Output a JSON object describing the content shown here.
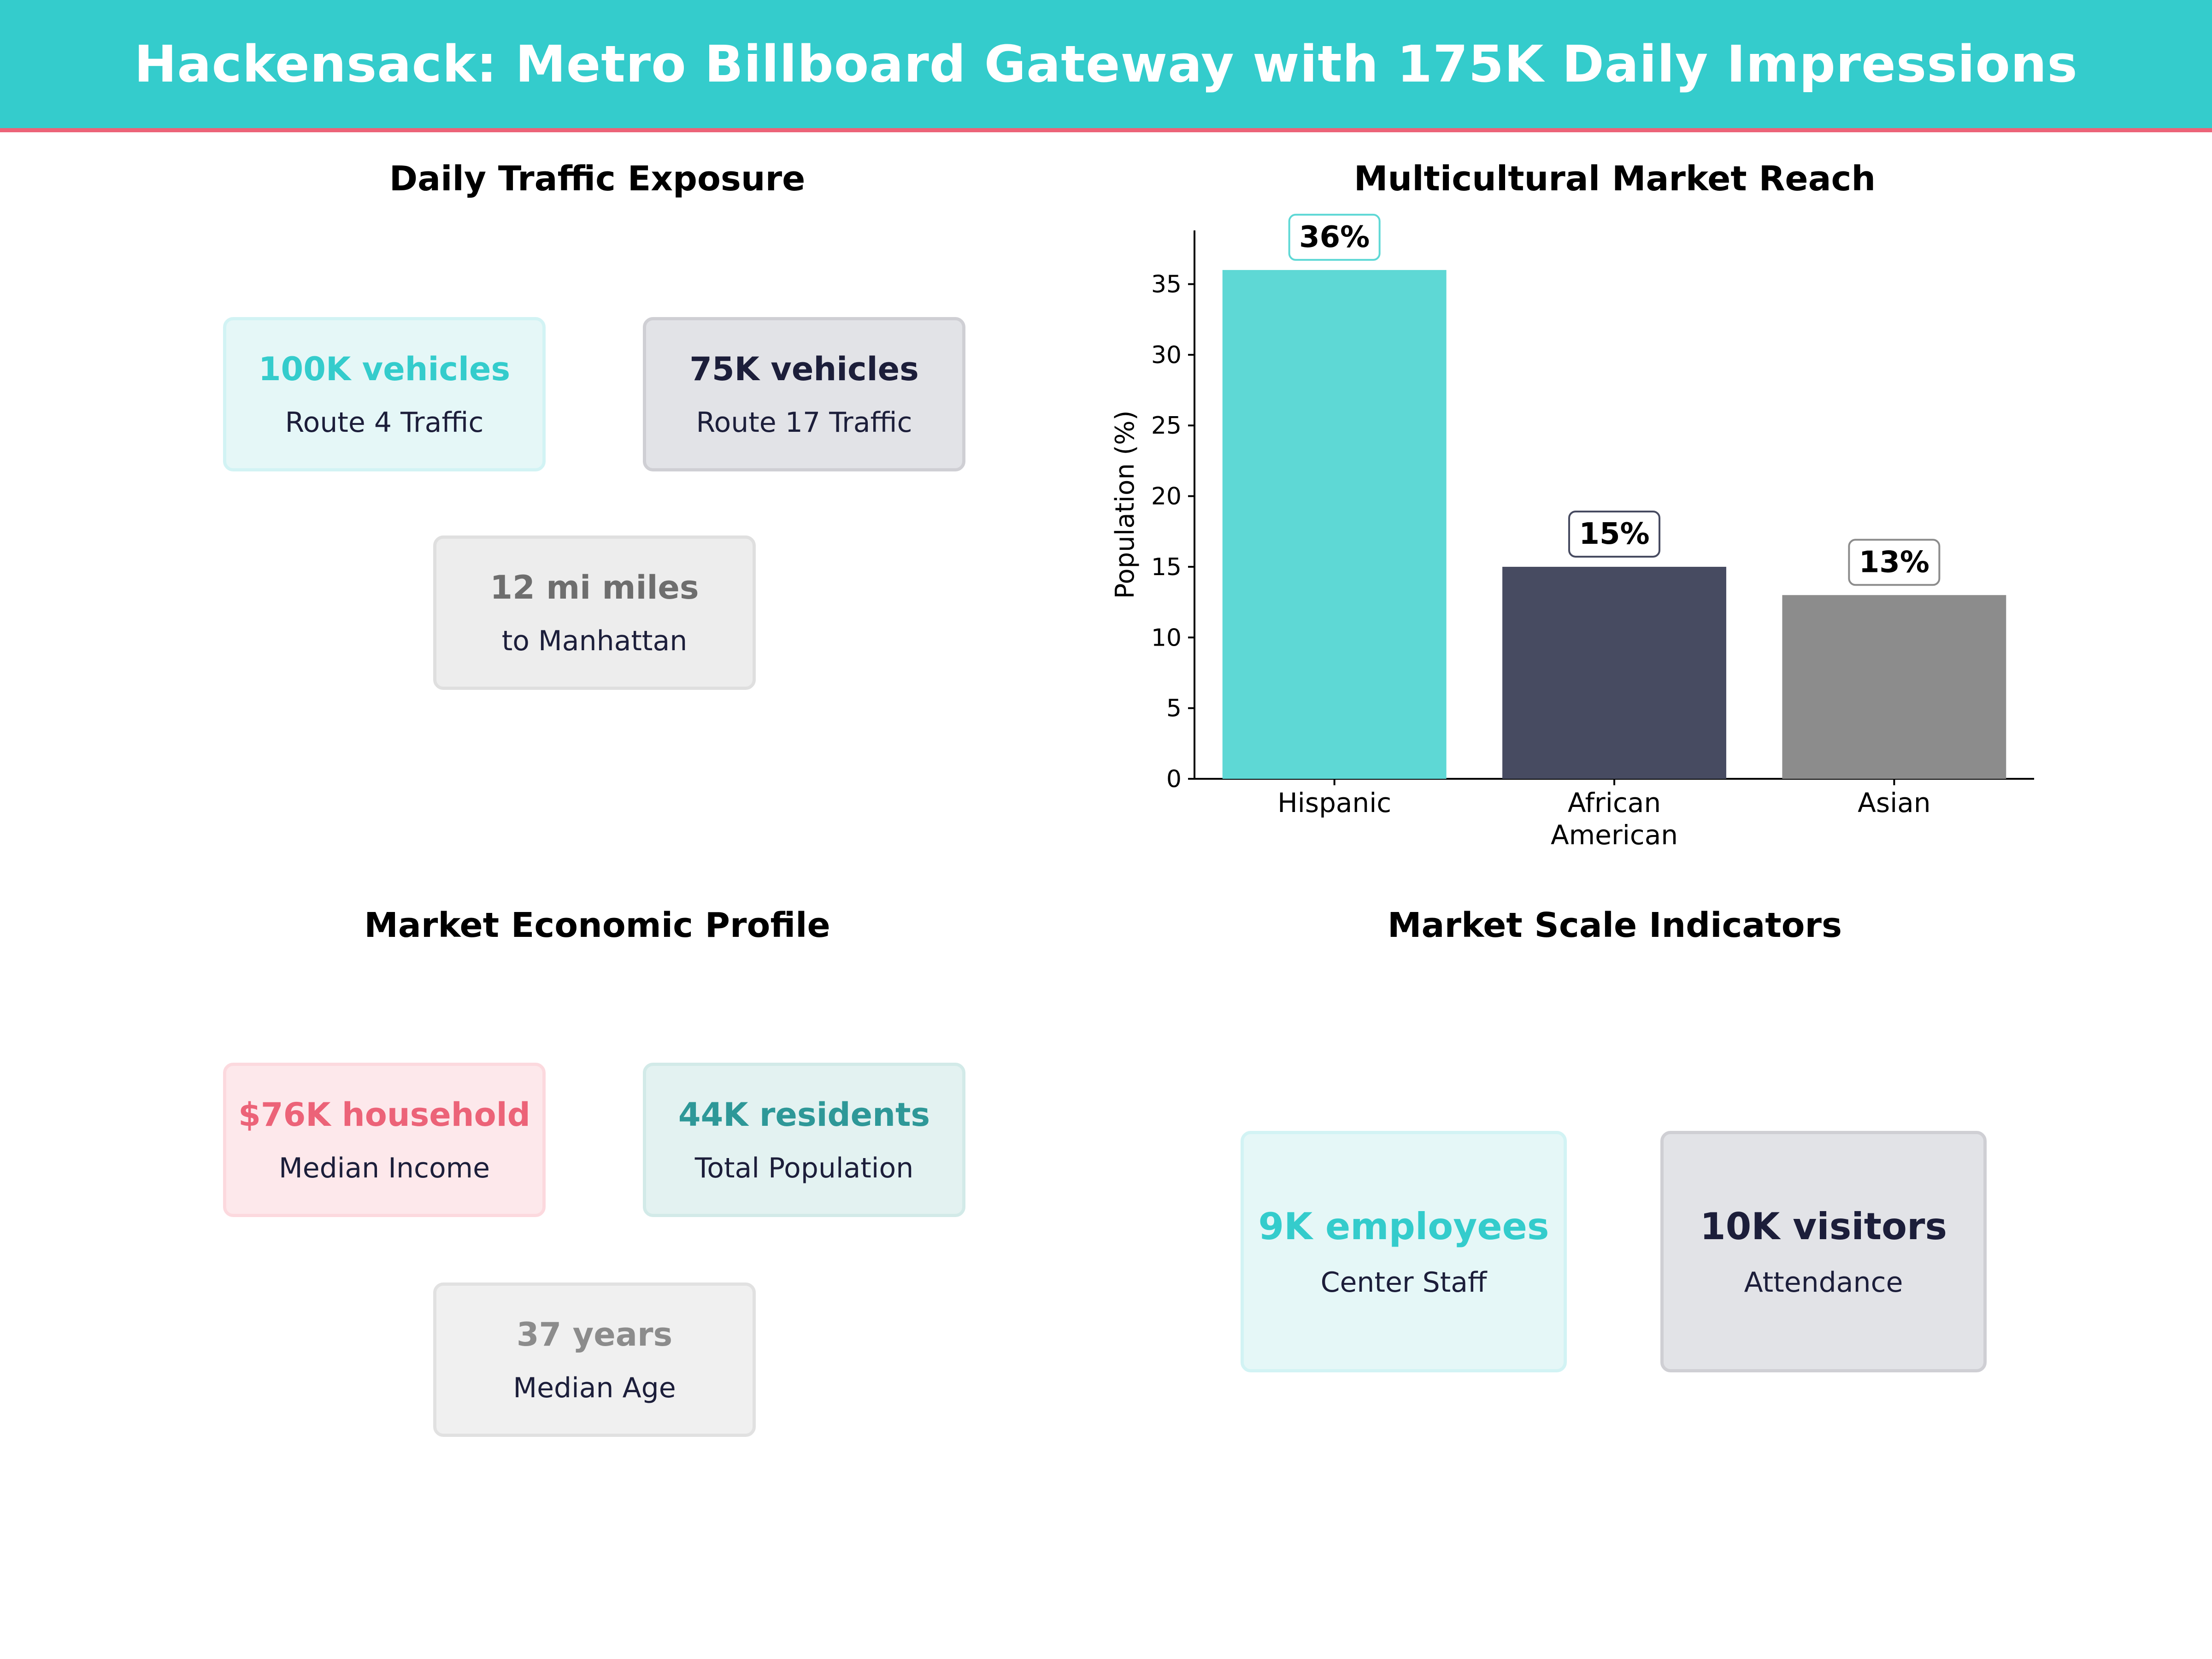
{
  "header": {
    "title": "Hackensack: Metro Billboard Gateway with 175K Daily Impressions"
  },
  "panels": {
    "traffic": {
      "title": "Daily Traffic Exposure",
      "cards": [
        {
          "value": "100K vehicles",
          "label": "Route 4  Traffic"
        },
        {
          "value": "75K vehicles",
          "label": "Route 17 Traffic"
        },
        {
          "value": "12 mi miles",
          "label": "to Manhattan"
        }
      ]
    },
    "reach": {
      "title": "Multicultural Market Reach"
    },
    "economic": {
      "title": "Market Economic Profile",
      "cards": [
        {
          "value": "$76K household",
          "label": "Median Income"
        },
        {
          "value": "44K residents",
          "label": "Total Population"
        },
        {
          "value": "37 years",
          "label": "Median Age"
        }
      ]
    },
    "scale": {
      "title": "Market Scale Indicators",
      "cards": [
        {
          "value": "9K employees",
          "label": "Center Staff"
        },
        {
          "value": "10K visitors",
          "label": "Attendance"
        }
      ]
    }
  },
  "colors": {
    "accent": "#34CCCC",
    "stripe": "#EC6378",
    "navy": "#1C1E3A",
    "grey": "#8C8C8C"
  },
  "chart_data": {
    "type": "bar",
    "title": "Multicultural Market Reach",
    "categories": [
      "Hispanic",
      "African\nAmerican",
      "Asian"
    ],
    "values": [
      36,
      15,
      13
    ],
    "data_labels": [
      "36%",
      "15%",
      "13%"
    ],
    "xlabel": "",
    "ylabel": "Population (%)",
    "ylim": [
      0,
      38.8
    ],
    "yticks": [
      0,
      5,
      10,
      15,
      20,
      25,
      30,
      35
    ],
    "colors": [
      "#5ED8D5",
      "#474B61",
      "#8C8C8C"
    ],
    "grid": false
  }
}
